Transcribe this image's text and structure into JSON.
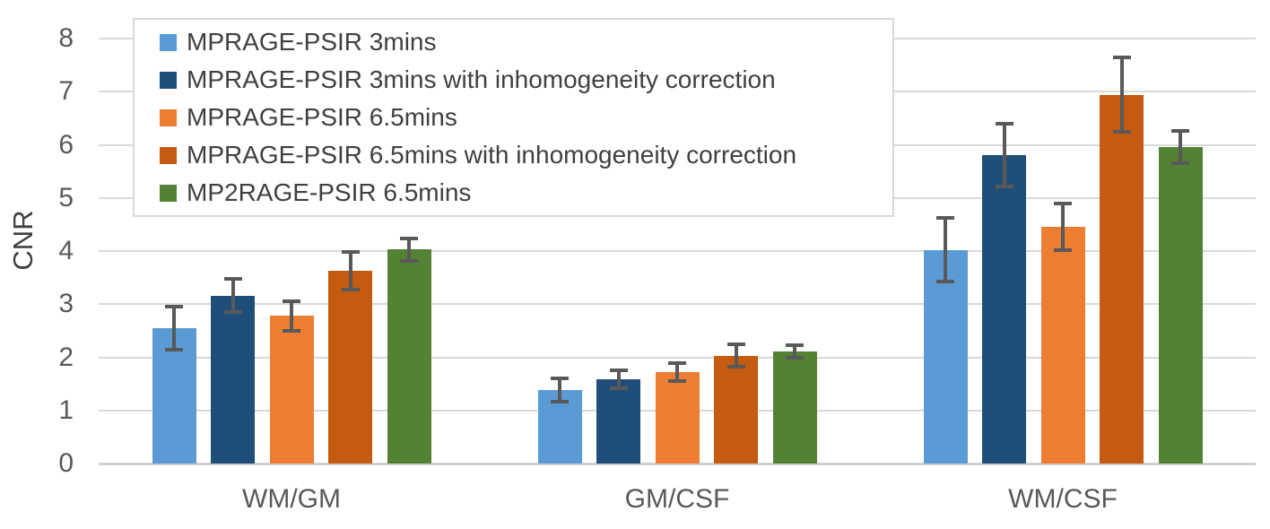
{
  "chart_data": {
    "type": "bar",
    "title": "",
    "ylabel": "CNR",
    "xlabel": "",
    "ylim": [
      0,
      8
    ],
    "yticks": [
      0,
      1,
      2,
      3,
      4,
      5,
      6,
      7,
      8
    ],
    "grid": true,
    "legend_position": "top-left",
    "categories": [
      "WM/GM",
      "GM/CSF",
      "WM/CSF"
    ],
    "series": [
      {
        "name": "MPRAGE-PSIR 3mins",
        "color": "#5B9BD5",
        "values": [
          2.55,
          1.38,
          4.02
        ],
        "errors": [
          0.4,
          0.22,
          0.6
        ]
      },
      {
        "name": "MPRAGE-PSIR 3mins with inhomogeneity correction",
        "color": "#1F4E79",
        "values": [
          3.16,
          1.59,
          5.81
        ],
        "errors": [
          0.31,
          0.17,
          0.59
        ]
      },
      {
        "name": "MPRAGE-PSIR 6.5mins",
        "color": "#ED7D31",
        "values": [
          2.78,
          1.72,
          4.46
        ],
        "errors": [
          0.28,
          0.17,
          0.44
        ]
      },
      {
        "name": "MPRAGE-PSIR 6.5mins with inhomogeneity correction",
        "color": "#C55A11",
        "values": [
          3.63,
          2.03,
          6.94
        ],
        "errors": [
          0.36,
          0.21,
          0.7
        ]
      },
      {
        "name": "MP2RAGE-PSIR 6.5mins",
        "color": "#548235",
        "values": [
          4.03,
          2.11,
          5.96
        ],
        "errors": [
          0.21,
          0.11,
          0.31
        ]
      }
    ],
    "error_bar_color": "#595959",
    "gridline_color": "#d9d9d9",
    "axis_text_color": "#595959",
    "legend_text_color": "#404040",
    "legend_border_color": "#d9d9d9"
  }
}
